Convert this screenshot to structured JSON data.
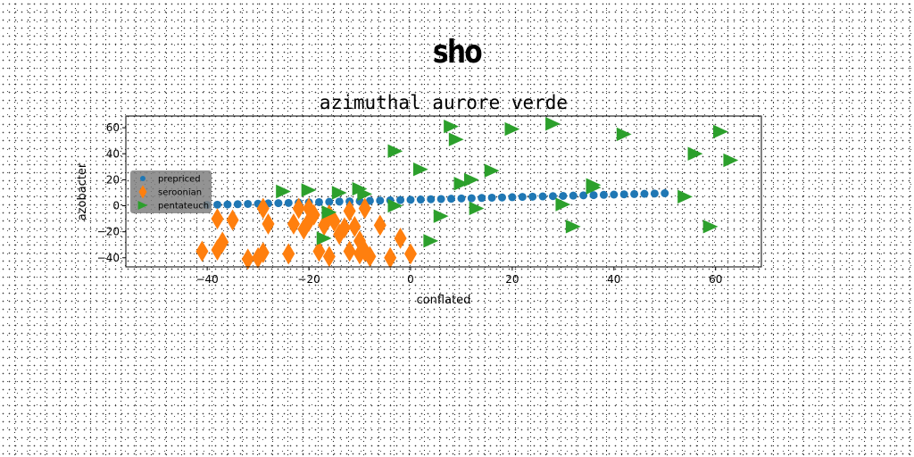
{
  "suptitle": "sho",
  "chart_data": {
    "type": "scatter",
    "title": "azimuthal aurore verde",
    "xlabel": "conflated",
    "ylabel": "azobacter",
    "xlim": [
      -56,
      69
    ],
    "ylim": [
      -47,
      69
    ],
    "xticks": [
      -40,
      -20,
      0,
      20,
      40,
      60
    ],
    "yticks": [
      -40,
      -20,
      0,
      20,
      40,
      60
    ],
    "grid": false,
    "legend_position": "center-left",
    "series": [
      {
        "name": "prepriced",
        "color": "#1f77b4",
        "marker": "circle",
        "x": [
          -40,
          -38,
          -36,
          -34,
          -32,
          -30,
          -28,
          -26,
          -24,
          -22,
          -20,
          -18,
          -16,
          -14,
          -12,
          -10,
          -8,
          -6,
          -4,
          -2,
          0,
          2,
          4,
          6,
          8,
          10,
          12,
          14,
          16,
          18,
          20,
          22,
          24,
          26,
          28,
          30,
          32,
          34,
          36,
          38,
          40,
          42,
          44,
          46,
          48,
          50
        ],
        "y": [
          0.6,
          0.8,
          1.0,
          1.2,
          1.4,
          1.6,
          1.8,
          2.0,
          2.2,
          2.4,
          2.6,
          2.8,
          3.0,
          3.2,
          3.4,
          3.6,
          3.8,
          4.0,
          4.2,
          4.4,
          4.6,
          4.8,
          5.0,
          5.2,
          5.4,
          5.6,
          5.8,
          6.0,
          6.2,
          6.4,
          6.6,
          6.8,
          7.0,
          7.2,
          7.4,
          7.6,
          7.8,
          8.0,
          8.2,
          8.4,
          8.6,
          8.8,
          9.0,
          9.2,
          9.4,
          9.6
        ]
      },
      {
        "name": "seroonian",
        "color": "#ff7f0e",
        "marker": "diamond",
        "x": [
          -41,
          -38,
          -37,
          -38,
          -35,
          -32,
          -30,
          -29,
          -29,
          -28,
          -24,
          -23,
          -22,
          -21,
          -20,
          -20,
          -19,
          -18,
          -17,
          -16,
          -16,
          -15,
          -14,
          -13,
          -12,
          -12,
          -11,
          -10,
          -10,
          -9,
          -9,
          -8,
          -6,
          -4,
          -2,
          0
        ],
        "y": [
          -35,
          -34,
          -28,
          -10,
          -11,
          -41,
          -40,
          -36,
          -2,
          -14,
          -37,
          -14,
          -2,
          -18,
          -2,
          -12,
          -7,
          -35,
          -15,
          -7,
          -39,
          -12,
          -22,
          -17,
          -4,
          -35,
          -16,
          -27,
          -37,
          -2,
          -35,
          -39,
          -15,
          -40,
          -25,
          -37
        ]
      },
      {
        "name": "pentateuch",
        "color": "#2ca02c",
        "marker": "triangle-right",
        "x": [
          -25,
          -20,
          -17,
          -16,
          -14,
          -10,
          -9,
          -3,
          -3,
          2,
          4,
          6,
          8,
          9,
          10,
          12,
          13,
          16,
          20,
          28,
          30,
          32,
          36,
          36,
          42,
          54,
          56,
          59,
          61,
          63
        ],
        "y": [
          11,
          12,
          -25,
          -5,
          10,
          13,
          9,
          42,
          0,
          28,
          -27,
          -8,
          61,
          51,
          17,
          20,
          -2,
          27,
          59,
          63,
          1,
          -16,
          14,
          16,
          55,
          7,
          40,
          -16,
          57,
          35
        ]
      }
    ]
  }
}
